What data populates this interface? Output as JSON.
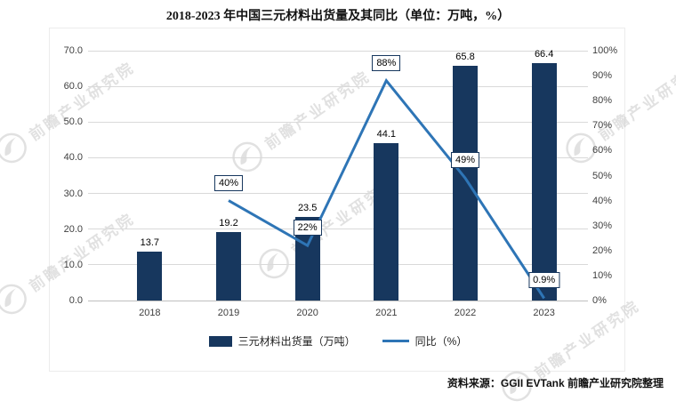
{
  "title": "2018-2023 年中国三元材料出货量及其同比（单位：万吨，%）",
  "source": {
    "text": "资料来源：GGII EVTank 前瞻产业研究院整理"
  },
  "watermark": {
    "text": "前瞻产业研究院"
  },
  "legend": {
    "bar_label": "三元材料出货量（万吨）",
    "line_label": "同比（%）"
  },
  "colors": {
    "bar": "#17375E",
    "line": "#2E75B6",
    "grid": "#D9D9D9",
    "axis_line": "#BFBFBF",
    "label_box_border": "#17375E",
    "watermark": "#C9C9C9"
  },
  "chart_data": {
    "type": "bar",
    "combo": "bar+line",
    "title": "2018-2023 年中国三元材料出货量及其同比（单位：万吨，%）",
    "categories": [
      "2018",
      "2019",
      "2020",
      "2021",
      "2022",
      "2023"
    ],
    "series": [
      {
        "name": "三元材料出货量（万吨）",
        "type": "bar",
        "axis": "left",
        "color": "#17375E",
        "values": [
          13.7,
          19.2,
          23.5,
          44.1,
          65.8,
          66.4
        ],
        "data_labels": [
          "13.7",
          "19.2",
          "23.5",
          "44.1",
          "65.8",
          "66.4"
        ]
      },
      {
        "name": "同比（%）",
        "type": "line",
        "axis": "right",
        "color": "#2E75B6",
        "values": [
          null,
          40,
          22,
          88,
          49,
          0.9
        ],
        "data_labels": [
          null,
          "40%",
          "22%",
          "88%",
          "49%",
          "0.9%"
        ]
      }
    ],
    "left_axis": {
      "min": 0,
      "max": 70,
      "step": 10,
      "tick_labels": [
        "0.0",
        "10.0",
        "20.0",
        "30.0",
        "40.0",
        "50.0",
        "60.0",
        "70.0"
      ]
    },
    "right_axis": {
      "min": 0,
      "max": 100,
      "step": 10,
      "tick_labels": [
        "0%",
        "10%",
        "20%",
        "30%",
        "40%",
        "50%",
        "60%",
        "70%",
        "80%",
        "90%",
        "100%"
      ]
    },
    "grid": true,
    "legend_position": "bottom"
  }
}
